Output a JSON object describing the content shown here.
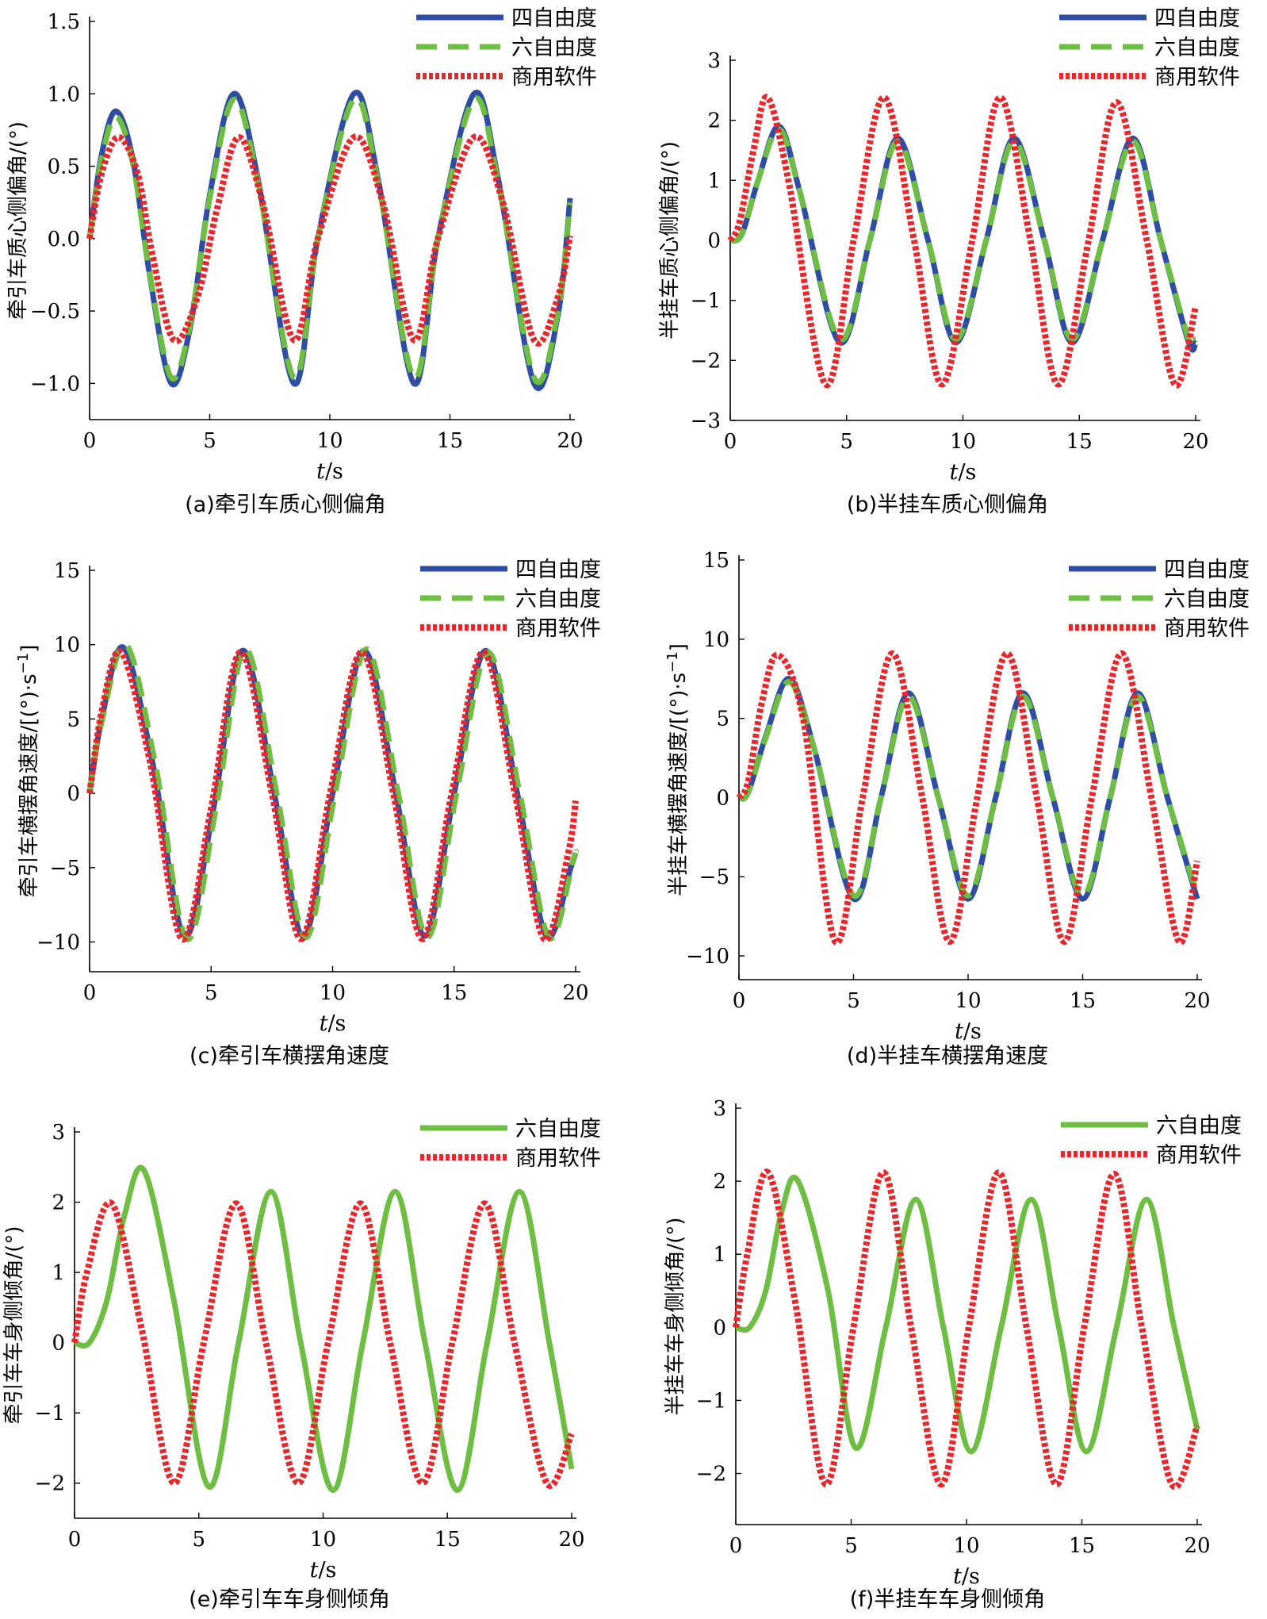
{
  "chart_data": [
    {
      "id": "a",
      "type": "line",
      "caption": "(a)牵引车质心侧偏角",
      "xlabel_italic": "t",
      "xlabel_unit": "/s",
      "ylabel": "牵引车质心侧偏角/(°)",
      "xlim": [
        0,
        20
      ],
      "ylim": [
        -1.25,
        1.5
      ],
      "xticks": [
        0,
        5,
        10,
        15,
        20
      ],
      "xtick_labels": [
        "0",
        "5",
        "10",
        "15",
        "20"
      ],
      "yticks": [
        -1.0,
        -0.5,
        0.0,
        0.5,
        1.0,
        1.5
      ],
      "ytick_labels": [
        "−1.0",
        "−0.5",
        "0.0",
        "0.5",
        "1.0",
        "1.5"
      ],
      "legend": "top-right",
      "series": [
        {
          "name": "四自由度",
          "color": "#2e4da3",
          "style": "solid",
          "x": [
            0,
            0.5,
            1.1,
            1.8,
            2.5,
            3.4,
            4.2,
            5.0,
            6.0,
            7.0,
            8.5,
            9.5,
            11.0,
            12.0,
            13.5,
            14.5,
            16.0,
            17.0,
            18.5,
            19.5,
            20.0
          ],
          "y": [
            0,
            0.58,
            0.88,
            0.55,
            -0.25,
            -1.0,
            -0.6,
            0.3,
            1.0,
            0.42,
            -1.0,
            0.0,
            1.0,
            0.42,
            -1.0,
            0.0,
            1.0,
            0.42,
            -1.0,
            -0.52,
            0.28
          ]
        },
        {
          "name": "六自由度",
          "color": "#6fbe44",
          "style": "dashed",
          "x": [
            0,
            0.5,
            1.1,
            1.8,
            2.5,
            3.4,
            4.2,
            5.0,
            6.0,
            7.0,
            8.5,
            9.5,
            11.0,
            12.0,
            13.5,
            14.5,
            16.0,
            17.0,
            18.5,
            19.5,
            20.0
          ],
          "y": [
            0,
            0.55,
            0.84,
            0.52,
            -0.24,
            -0.96,
            -0.58,
            0.28,
            0.96,
            0.4,
            -0.96,
            0.0,
            0.96,
            0.4,
            -0.96,
            0.0,
            0.96,
            0.4,
            -0.96,
            -0.5,
            0.25
          ]
        },
        {
          "name": "商用软件",
          "color": "#e8262b",
          "style": "dotted",
          "x": [
            0,
            0.5,
            1.2,
            2.0,
            2.6,
            3.5,
            4.5,
            5.3,
            6.2,
            7.2,
            8.5,
            9.5,
            11.0,
            12.2,
            13.5,
            14.5,
            16.0,
            17.2,
            18.5,
            19.5,
            20.0
          ],
          "y": [
            0,
            0.45,
            0.7,
            0.45,
            -0.1,
            -0.7,
            -0.4,
            0.2,
            0.7,
            0.25,
            -0.7,
            0.0,
            0.7,
            0.25,
            -0.7,
            0.0,
            0.7,
            0.25,
            -0.7,
            -0.4,
            0.02
          ]
        }
      ]
    },
    {
      "id": "b",
      "type": "line",
      "caption": "(b)半挂车质心侧偏角",
      "xlabel_italic": "t",
      "xlabel_unit": "/s",
      "ylabel": "半挂车质心侧偏角/(°)",
      "xlim": [
        0,
        20
      ],
      "ylim": [
        -3,
        3
      ],
      "xticks": [
        0,
        5,
        10,
        15,
        20
      ],
      "xtick_labels": [
        "0",
        "5",
        "10",
        "15",
        "20"
      ],
      "yticks": [
        -3,
        -2,
        -1,
        0,
        1,
        2,
        3
      ],
      "ytick_labels": [
        "−3",
        "−2",
        "−1",
        "0",
        "1",
        "2",
        "3"
      ],
      "legend": "top-right",
      "series": [
        {
          "name": "四自由度",
          "color": "#2e4da3",
          "style": "solid",
          "x": [
            0,
            0.5,
            1.2,
            2.1,
            3.0,
            4.7,
            6.0,
            7.2,
            8.5,
            9.7,
            11.0,
            12.2,
            13.5,
            14.7,
            16.0,
            17.3,
            18.5,
            19.7,
            20.0
          ],
          "y": [
            0,
            0.1,
            1.0,
            1.9,
            0.8,
            -1.7,
            0.0,
            1.7,
            0.0,
            -1.7,
            0.0,
            1.7,
            0.0,
            -1.7,
            0.0,
            1.7,
            0.0,
            -1.7,
            -1.7
          ]
        },
        {
          "name": "六自由度",
          "color": "#6fbe44",
          "style": "dashed",
          "x": [
            0,
            0.5,
            1.2,
            2.1,
            3.0,
            4.7,
            6.0,
            7.2,
            8.5,
            9.7,
            11.0,
            12.2,
            13.5,
            14.7,
            16.0,
            17.3,
            18.5,
            19.7,
            20.0
          ],
          "y": [
            0,
            0.1,
            1.0,
            1.85,
            0.8,
            -1.65,
            0.0,
            1.65,
            0.0,
            -1.65,
            0.0,
            1.65,
            0.0,
            -1.65,
            0.0,
            1.65,
            0.0,
            -1.65,
            -1.65
          ]
        },
        {
          "name": "商用软件",
          "color": "#e8262b",
          "style": "dotted",
          "x": [
            0,
            0.4,
            1.0,
            1.6,
            2.5,
            4.1,
            5.3,
            6.6,
            7.9,
            9.1,
            10.4,
            11.6,
            12.9,
            14.1,
            15.4,
            16.6,
            17.9,
            19.1,
            20.0
          ],
          "y": [
            0,
            0.3,
            1.5,
            2.38,
            1.0,
            -2.4,
            0.0,
            2.38,
            0.0,
            -2.4,
            0.0,
            2.38,
            0.0,
            -2.4,
            0.0,
            2.3,
            0.0,
            -2.4,
            -1.1
          ]
        }
      ]
    },
    {
      "id": "c",
      "type": "line",
      "caption": "(c)牵引车横摆角速度",
      "xlabel_italic": "t",
      "xlabel_unit": "/s",
      "ylabel": "牵引车横摆角速度/[(°)·s",
      "ylabel_sup": "−1",
      "ylabel_end": "]",
      "xlim": [
        0,
        20
      ],
      "ylim": [
        -12,
        15
      ],
      "xticks": [
        0,
        5,
        10,
        15,
        20
      ],
      "xtick_labels": [
        "0",
        "5",
        "10",
        "15",
        "20"
      ],
      "yticks": [
        -10,
        -5,
        0,
        5,
        10,
        15
      ],
      "ytick_labels": [
        "−10",
        "−5",
        "0",
        "5",
        "10",
        "15"
      ],
      "legend": "top-right",
      "series": [
        {
          "name": "四自由度",
          "color": "#2e4da3",
          "style": "solid",
          "x": [
            0,
            0.5,
            1.4,
            2.6,
            3.9,
            5.1,
            6.3,
            7.6,
            8.8,
            10.0,
            11.3,
            12.6,
            13.8,
            15.0,
            16.3,
            17.6,
            18.8,
            19.8,
            20.0
          ],
          "y": [
            0,
            5.0,
            9.8,
            2.0,
            -9.6,
            -1.0,
            9.6,
            0.0,
            -9.6,
            0.0,
            9.6,
            0.0,
            -9.6,
            0.0,
            9.6,
            0.0,
            -9.6,
            -5.0,
            -4.0
          ]
        },
        {
          "name": "六自由度",
          "color": "#6fbe44",
          "style": "dashed",
          "x": [
            0,
            0.5,
            1.5,
            2.7,
            4.0,
            5.2,
            6.4,
            7.7,
            8.9,
            10.1,
            11.4,
            12.7,
            13.9,
            15.1,
            16.4,
            17.7,
            18.9,
            19.9,
            20.0
          ],
          "y": [
            0,
            4.8,
            10.0,
            2.0,
            -9.8,
            -1.0,
            9.7,
            0.0,
            -9.7,
            0.0,
            9.7,
            0.0,
            -9.7,
            0.0,
            9.5,
            0.0,
            -9.7,
            -4.5,
            -4.0
          ]
        },
        {
          "name": "商用软件",
          "color": "#e8262b",
          "style": "dotted",
          "x": [
            0,
            0.5,
            1.3,
            2.5,
            3.8,
            5.0,
            6.2,
            7.5,
            8.7,
            9.9,
            11.2,
            12.5,
            13.7,
            14.9,
            16.2,
            17.5,
            18.7,
            19.7,
            20.0
          ],
          "y": [
            0,
            5.5,
            9.5,
            2.0,
            -9.8,
            -1.0,
            9.5,
            0.0,
            -9.8,
            0.0,
            9.5,
            0.0,
            -9.8,
            0.0,
            9.5,
            0.0,
            -9.8,
            -4.0,
            -0.5
          ]
        }
      ]
    },
    {
      "id": "d",
      "type": "line",
      "caption": "(d)半挂车横摆角速度",
      "xlabel_italic": "t",
      "xlabel_unit": "/s",
      "ylabel": "半挂车横摆角速度/[(°)·s",
      "ylabel_sup": "−1",
      "ylabel_end": "]",
      "xlim": [
        0,
        20
      ],
      "ylim": [
        -11.5,
        15
      ],
      "xticks": [
        0,
        5,
        10,
        15,
        20
      ],
      "xtick_labels": [
        "0",
        "5",
        "10",
        "15",
        "20"
      ],
      "yticks": [
        -10,
        -5,
        0,
        5,
        10,
        15
      ],
      "ytick_labels": [
        "−10",
        "−5",
        "0",
        "5",
        "10",
        "15"
      ],
      "legend": "top-right",
      "series": [
        {
          "name": "四自由度",
          "color": "#2e4da3",
          "style": "solid",
          "x": [
            0,
            0.4,
            1.2,
            2.2,
            3.3,
            5.0,
            6.2,
            7.4,
            8.7,
            10.0,
            11.2,
            12.4,
            13.7,
            15.0,
            16.2,
            17.4,
            18.7,
            20.0
          ],
          "y": [
            0,
            0.3,
            4.0,
            7.5,
            3.0,
            -6.4,
            0.0,
            6.6,
            0.0,
            -6.4,
            0.0,
            6.6,
            0.0,
            -6.4,
            0.0,
            6.6,
            0.0,
            -6.4
          ]
        },
        {
          "name": "六自由度",
          "color": "#6fbe44",
          "style": "dashed",
          "x": [
            0,
            0.4,
            1.2,
            2.2,
            3.3,
            5.0,
            6.2,
            7.4,
            8.7,
            10.0,
            11.2,
            12.4,
            13.7,
            15.0,
            16.2,
            17.4,
            18.7,
            20.0
          ],
          "y": [
            0,
            0.3,
            3.9,
            7.3,
            3.0,
            -6.2,
            0.0,
            6.4,
            0.0,
            -6.2,
            0.0,
            6.4,
            0.0,
            -6.2,
            0.0,
            6.4,
            0.0,
            -6.2
          ]
        },
        {
          "name": "商用软件",
          "color": "#e8262b",
          "style": "dotted",
          "x": [
            0,
            0.4,
            1.0,
            1.7,
            2.8,
            4.2,
            5.4,
            6.7,
            8.0,
            9.2,
            10.4,
            11.7,
            13.0,
            14.2,
            15.4,
            16.7,
            18.0,
            19.2,
            20.0
          ],
          "y": [
            0,
            1.0,
            6.0,
            9.0,
            5.0,
            -9.1,
            0.0,
            9.1,
            0.0,
            -9.1,
            0.0,
            9.1,
            0.0,
            -9.1,
            0.0,
            9.1,
            0.0,
            -9.1,
            -4.0
          ]
        }
      ]
    },
    {
      "id": "e",
      "type": "line",
      "caption": "(e)牵引车车身侧倾角",
      "xlabel_italic": "t",
      "xlabel_unit": "/s",
      "ylabel": "牵引车车身侧倾角/(°)",
      "xlim": [
        0,
        20
      ],
      "ylim": [
        -2.5,
        3
      ],
      "xticks": [
        0,
        5,
        10,
        15,
        20
      ],
      "xtick_labels": [
        "0",
        "5",
        "10",
        "15",
        "20"
      ],
      "yticks": [
        -2,
        -1,
        0,
        1,
        2,
        3
      ],
      "ytick_labels": [
        "−2",
        "−1",
        "0",
        "1",
        "2",
        "3"
      ],
      "legend": "top-right",
      "series": [
        {
          "name": "六自由度",
          "color": "#6fbe44",
          "style": "solid",
          "x": [
            0,
            0.6,
            1.3,
            2.0,
            2.8,
            4.0,
            5.4,
            6.6,
            7.9,
            9.1,
            10.4,
            11.6,
            12.9,
            14.1,
            15.4,
            16.6,
            17.9,
            19.1,
            20.0
          ],
          "y": [
            0,
            0.0,
            0.6,
            1.8,
            2.45,
            0.6,
            -2.05,
            0.0,
            2.15,
            0.0,
            -2.1,
            0.0,
            2.15,
            0.0,
            -2.1,
            0.0,
            2.15,
            0.0,
            -1.8
          ]
        },
        {
          "name": "商用软件",
          "color": "#e8262b",
          "style": "dotted",
          "x": [
            0,
            0.5,
            1.5,
            2.7,
            4.0,
            5.2,
            6.5,
            7.7,
            9.0,
            10.2,
            11.5,
            12.7,
            14.0,
            15.2,
            16.5,
            17.7,
            19.0,
            20.0
          ],
          "y": [
            0,
            1.0,
            1.98,
            0.2,
            -2.0,
            0.0,
            1.98,
            0.0,
            -2.0,
            0.0,
            1.98,
            0.0,
            -2.0,
            0.0,
            1.98,
            0.0,
            -2.0,
            -1.3
          ]
        }
      ]
    },
    {
      "id": "f",
      "type": "line",
      "caption": "(f)半挂车车身侧倾角",
      "xlabel_italic": "t",
      "xlabel_unit": "/s",
      "ylabel": "半挂车车身侧倾角/(°)",
      "xlim": [
        0,
        20
      ],
      "ylim": [
        -2.7,
        3
      ],
      "xticks": [
        0,
        5,
        10,
        15,
        20
      ],
      "xtick_labels": [
        "0",
        "5",
        "10",
        "15",
        "20"
      ],
      "yticks": [
        -2,
        -1,
        0,
        1,
        2,
        3
      ],
      "ytick_labels": [
        "−2",
        "−1",
        "0",
        "1",
        "2",
        "3"
      ],
      "legend": "top-right",
      "series": [
        {
          "name": "六自由度",
          "color": "#6fbe44",
          "style": "solid",
          "x": [
            0,
            0.6,
            1.3,
            2.0,
            2.7,
            4.0,
            5.2,
            6.5,
            7.8,
            9.0,
            10.2,
            11.5,
            12.8,
            14.0,
            15.2,
            16.5,
            17.8,
            19.0,
            20.0
          ],
          "y": [
            0,
            0.0,
            0.5,
            1.6,
            2.0,
            0.5,
            -1.65,
            0.0,
            1.75,
            0.0,
            -1.7,
            0.0,
            1.75,
            0.0,
            -1.7,
            0.0,
            1.75,
            0.0,
            -1.4
          ]
        },
        {
          "name": "商用软件",
          "color": "#e8262b",
          "style": "dotted",
          "x": [
            0,
            0.5,
            1.4,
            2.6,
            3.9,
            5.1,
            6.4,
            7.6,
            8.9,
            10.1,
            11.4,
            12.6,
            13.9,
            15.1,
            16.4,
            17.6,
            18.9,
            20.0
          ],
          "y": [
            0,
            1.0,
            2.12,
            0.3,
            -2.15,
            0.0,
            2.12,
            0.0,
            -2.15,
            0.0,
            2.12,
            0.0,
            -2.15,
            0.0,
            2.1,
            0.0,
            -2.15,
            -1.35
          ]
        }
      ]
    }
  ]
}
